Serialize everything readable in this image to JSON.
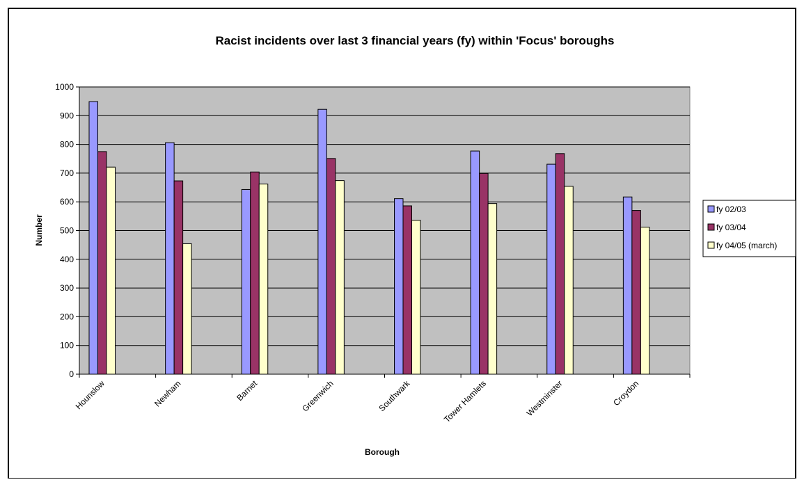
{
  "chart_data": {
    "type": "bar",
    "title": "Racist incidents over last 3 financial  years (fy) within 'Focus' boroughs",
    "xlabel": "Borough",
    "ylabel": "Number",
    "ylim": [
      0,
      1000
    ],
    "yticks": [
      0,
      100,
      200,
      300,
      400,
      500,
      600,
      700,
      800,
      900,
      1000
    ],
    "grid": true,
    "legend_position": "right",
    "categories": [
      "Hounslow",
      "Newham",
      "Barnet",
      "Greenwich",
      "Southwark",
      "Tower Hamlets",
      "Westminster",
      "Croydon"
    ],
    "series": [
      {
        "name": "fy 02/03",
        "color": "#9999ff",
        "values": [
          949,
          806,
          643,
          922,
          611,
          777,
          731,
          617
        ]
      },
      {
        "name": "fy 03/04",
        "color": "#993366",
        "values": [
          775,
          673,
          704,
          751,
          586,
          699,
          768,
          570
        ]
      },
      {
        "name": "fy 04/05 (march)",
        "color": "#ffffcc",
        "values": [
          721,
          454,
          662,
          674,
          536,
          594,
          654,
          512
        ]
      }
    ],
    "plot_background": "#c0c0c0"
  }
}
